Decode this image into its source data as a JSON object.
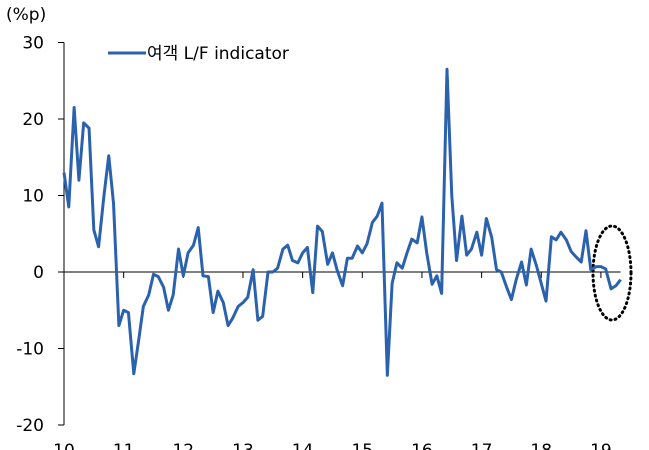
{
  "chart_data": {
    "type": "line",
    "y_axis_label": "(%p)",
    "x": [
      10,
      10.08,
      10.17,
      10.25,
      10.33,
      10.42,
      10.5,
      10.58,
      10.67,
      10.75,
      10.83,
      10.92,
      11,
      11.08,
      11.17,
      11.25,
      11.33,
      11.42,
      11.5,
      11.58,
      11.67,
      11.75,
      11.83,
      11.92,
      12,
      12.08,
      12.17,
      12.25,
      12.33,
      12.42,
      12.5,
      12.58,
      12.67,
      12.75,
      12.83,
      12.92,
      13,
      13.08,
      13.17,
      13.25,
      13.33,
      13.42,
      13.5,
      13.58,
      13.67,
      13.75,
      13.83,
      13.92,
      14,
      14.08,
      14.17,
      14.25,
      14.33,
      14.42,
      14.5,
      14.58,
      14.67,
      14.75,
      14.83,
      14.92,
      15,
      15.08,
      15.17,
      15.25,
      15.33,
      15.42,
      15.5,
      15.58,
      15.67,
      15.75,
      15.83,
      15.92,
      16,
      16.08,
      16.17,
      16.25,
      16.33,
      16.42,
      16.5,
      16.58,
      16.67,
      16.75,
      16.83,
      16.92,
      17,
      17.08,
      17.17,
      17.25,
      17.33,
      17.42,
      17.5,
      17.58,
      17.67,
      17.75,
      17.83,
      17.92,
      18,
      18.08,
      18.17,
      18.25,
      18.33,
      18.42,
      18.5,
      18.58,
      18.67,
      18.75,
      18.83,
      18.92,
      19,
      19.08,
      19.17,
      19.25,
      19.33
    ],
    "series": [
      {
        "name": "여객 L/F indicator",
        "color": "#2b62ad",
        "values": [
          13,
          8.5,
          21.5,
          12,
          19.5,
          18.8,
          5.5,
          3.3,
          10,
          15.2,
          9,
          -7,
          -5,
          -5.3,
          -13.3,
          -9,
          -4.5,
          -3,
          -0.3,
          -0.6,
          -2,
          -5,
          -3,
          3,
          -0.5,
          2.5,
          3.5,
          5.8,
          -0.5,
          -0.6,
          -5.3,
          -2.5,
          -4,
          -7,
          -6,
          -4.5,
          -4,
          -3.3,
          0.3,
          -6.3,
          -5.8,
          0,
          0,
          0.5,
          3,
          3.5,
          1.5,
          1.2,
          2.5,
          3.2,
          -2.7,
          6,
          5.3,
          1,
          2.5,
          0.2,
          -1.8,
          1.8,
          1.8,
          3.4,
          2.5,
          3.7,
          6.5,
          7.3,
          9,
          -13.5,
          -1.5,
          1.2,
          0.5,
          2.5,
          4.3,
          3.8,
          7.2,
          2.5,
          -1.6,
          -0.5,
          -2.8,
          26.5,
          10,
          1.5,
          7.3,
          2.2,
          3,
          5.2,
          2.2,
          7,
          4.5,
          0.3,
          0,
          -2,
          -3.6,
          -1,
          1.3,
          -1.7,
          3,
          0.8,
          -1.5,
          -3.8,
          4.6,
          4.2,
          5.2,
          4.2,
          2.7,
          2,
          1.3,
          5.4,
          0.3,
          0.7,
          0.7,
          0.4,
          -2.2,
          -1.8,
          -1
        ]
      }
    ],
    "xlim": [
      10,
      19.33
    ],
    "xticks": [
      10,
      11,
      12,
      13,
      14,
      15,
      16,
      17,
      18,
      19
    ],
    "ylim": [
      -20,
      30
    ],
    "yticks": [
      -20,
      -10,
      0,
      10,
      20,
      30
    ],
    "legend": "top-left"
  }
}
